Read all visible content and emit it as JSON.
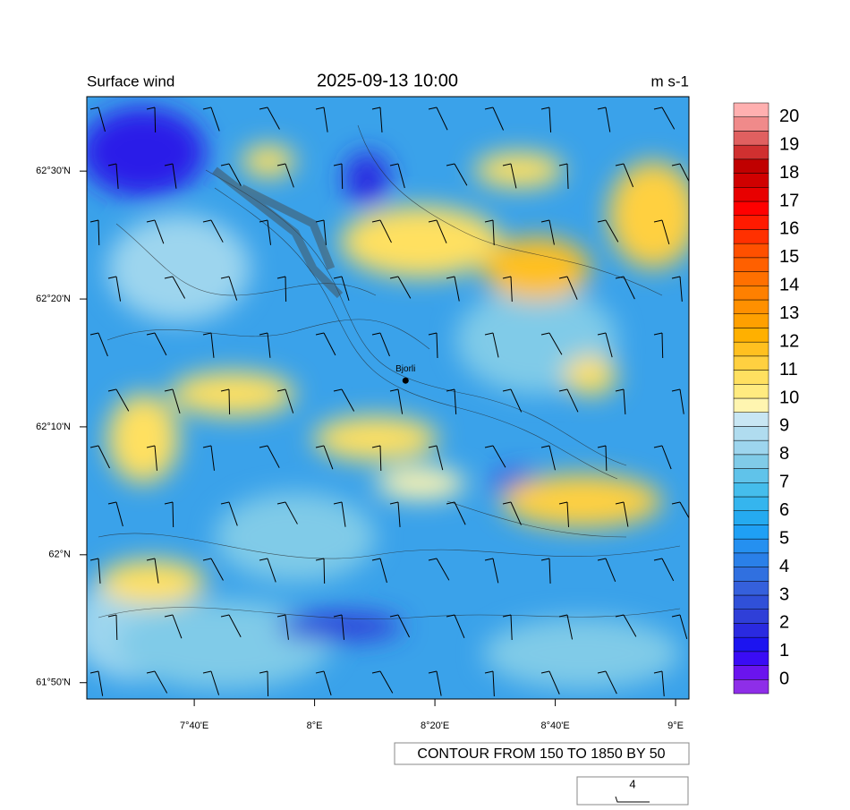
{
  "header": {
    "left": "Surface wind",
    "center": "2025-09-13 10:00",
    "right": "m s-1"
  },
  "map": {
    "latlim": [
      61.812,
      62.597
    ],
    "lonlim": [
      7.369,
      9.037
    ],
    "latticks": [
      {
        "value": 61.8333,
        "label": "61°50'N"
      },
      {
        "value": 62,
        "label": "62°N"
      },
      {
        "value": 62.1667,
        "label": "62°10'N"
      },
      {
        "value": 62.3333,
        "label": "62°20'N"
      },
      {
        "value": 62.5,
        "label": "62°30'N"
      }
    ],
    "lonticks": [
      {
        "value": 7.6667,
        "label": "7°40'E"
      },
      {
        "value": 8,
        "label": "8°E"
      },
      {
        "value": 8.3333,
        "label": "8°20'E"
      },
      {
        "value": 8.6667,
        "label": "8°40'E"
      },
      {
        "value": 9,
        "label": "9°E"
      }
    ],
    "station": {
      "name": "Bjorli",
      "lat": 62.227,
      "lon": 8.252
    }
  },
  "colorbar": {
    "labels": [
      0,
      1,
      2,
      3,
      4,
      5,
      6,
      7,
      8,
      9,
      10,
      11,
      12,
      13,
      14,
      15,
      16,
      17,
      18,
      19,
      20
    ],
    "colors": [
      "#8e2ee8",
      "#6a14ee",
      "#3a0cf5",
      "#1c14f0",
      "#2a2ae0",
      "#2f3fd8",
      "#3050d8",
      "#3560dc",
      "#3070e0",
      "#2a80e8",
      "#2590f0",
      "#1fa0f5",
      "#25aaf0",
      "#35b5ee",
      "#45bdec",
      "#60c3ea",
      "#80cbe8",
      "#9dd5ee",
      "#b0dcef",
      "#c8e6f3",
      "#fff5b0",
      "#ffeb80",
      "#ffe060",
      "#ffd040",
      "#ffc020",
      "#ffb000",
      "#ffa000",
      "#ff9000",
      "#ff8000",
      "#ff7000",
      "#ff6000",
      "#ff5000",
      "#ff3000",
      "#ff1a00",
      "#ff0000",
      "#e80000",
      "#d00000",
      "#c00000",
      "#d03030",
      "#e06060",
      "#f08a8a",
      "#ffb0b0"
    ]
  },
  "contour_note": "CONTOUR FROM 150 TO 1850 BY 50",
  "reference_vector": 4
}
